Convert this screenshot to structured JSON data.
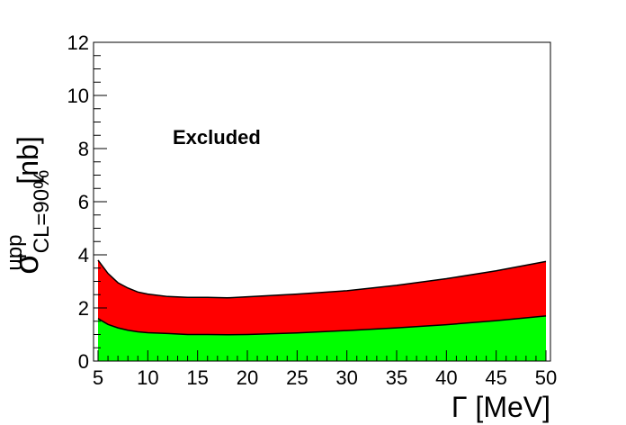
{
  "chart_data": {
    "type": "area",
    "xlabel": "Γ [MeV]",
    "ylabel": {
      "symbol": "σ",
      "superscript": "upp",
      "subscript": "CL=90%",
      "unit": "[nb]"
    },
    "xlim": [
      5,
      50
    ],
    "ylim": [
      0,
      12
    ],
    "xticks": [
      5,
      10,
      15,
      20,
      25,
      30,
      35,
      40,
      45,
      50
    ],
    "yticks": [
      0,
      2,
      4,
      6,
      8,
      10,
      12
    ],
    "grid": false,
    "annotation": "Excluded",
    "x": [
      5,
      6,
      7,
      8,
      9,
      10,
      12,
      14,
      16,
      18,
      20,
      25,
      30,
      35,
      40,
      45,
      50
    ],
    "series": [
      {
        "color": "#ff0000",
        "values": [
          3.8,
          3.3,
          2.95,
          2.75,
          2.6,
          2.52,
          2.43,
          2.4,
          2.4,
          2.38,
          2.42,
          2.52,
          2.65,
          2.85,
          3.1,
          3.4,
          3.75
        ]
      },
      {
        "color": "#00ff00",
        "values": [
          1.6,
          1.38,
          1.25,
          1.16,
          1.1,
          1.07,
          1.04,
          1.0,
          1.0,
          0.99,
          1.0,
          1.06,
          1.15,
          1.25,
          1.37,
          1.52,
          1.7
        ]
      }
    ]
  }
}
